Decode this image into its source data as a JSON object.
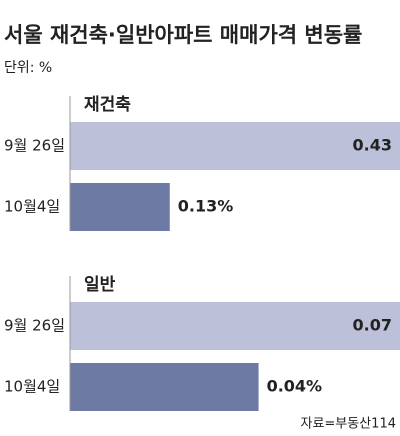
{
  "title": "서울 재건축·일반아파트 매매가격 변동률",
  "unit_note": "단위: %",
  "source": "자료=부동산114",
  "chart_data": [
    {
      "type": "bar",
      "orientation": "horizontal",
      "title": "재건축",
      "categories": [
        "9월 26일",
        "10월4일"
      ],
      "values": [
        0.43,
        0.13
      ],
      "value_labels": [
        "0.43",
        "0.13%"
      ],
      "colors": [
        "#bcc0d9",
        "#6d7ba4"
      ],
      "xlim": [
        0,
        0.43
      ]
    },
    {
      "type": "bar",
      "orientation": "horizontal",
      "title": "일반",
      "categories": [
        "9월 26일",
        "10월4일"
      ],
      "values": [
        0.07,
        0.04
      ],
      "value_labels": [
        "0.07",
        "0.04%"
      ],
      "colors": [
        "#bcc0d9",
        "#6d7ba4"
      ],
      "xlim": [
        0,
        0.07
      ]
    }
  ]
}
